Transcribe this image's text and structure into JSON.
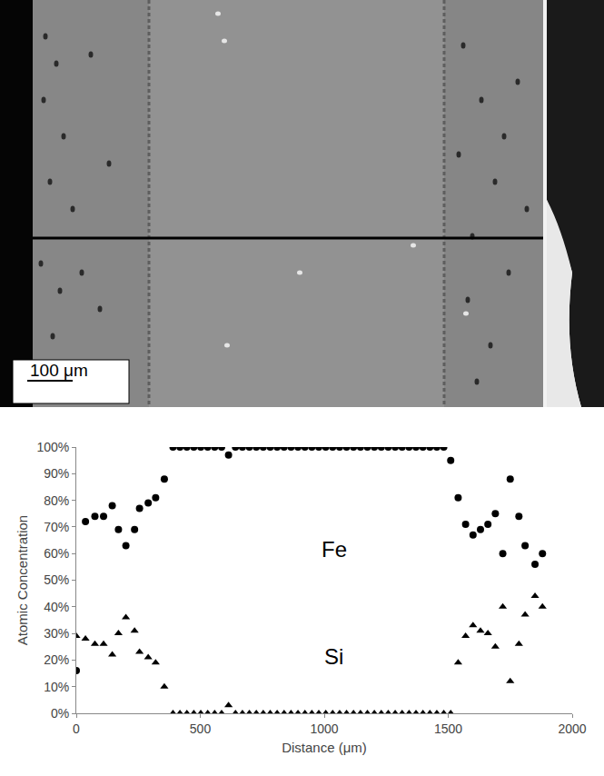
{
  "micrograph": {
    "scale_bar_label": "100 μm"
  },
  "chart_data": {
    "type": "scatter",
    "xlabel": "Distance (μm)",
    "ylabel": "Atomic Concentration",
    "x": [
      0,
      37,
      75,
      110,
      145,
      170,
      200,
      235,
      255,
      290,
      320,
      355,
      390,
      418,
      446,
      474,
      502,
      530,
      558,
      586,
      614,
      642,
      670,
      698,
      726,
      754,
      782,
      810,
      838,
      866,
      894,
      922,
      950,
      978,
      1006,
      1034,
      1062,
      1090,
      1118,
      1146,
      1174,
      1202,
      1230,
      1258,
      1286,
      1314,
      1342,
      1370,
      1398,
      1426,
      1454,
      1482,
      1510,
      1540,
      1570,
      1600,
      1630,
      1660,
      1690,
      1720,
      1750,
      1785,
      1810,
      1850,
      1880
    ],
    "series": [
      {
        "name": "Fe",
        "color": "#000000",
        "marker": "circle",
        "values": [
          16,
          72,
          74,
          74,
          78,
          69,
          63,
          69,
          77,
          79,
          81,
          88,
          100,
          100,
          100,
          100,
          100,
          100,
          100,
          100,
          97,
          100,
          100,
          100,
          100,
          100,
          100,
          100,
          100,
          100,
          100,
          100,
          100,
          100,
          100,
          100,
          100,
          100,
          100,
          100,
          100,
          100,
          100,
          100,
          100,
          100,
          100,
          100,
          100,
          100,
          100,
          100,
          95,
          81,
          71,
          67,
          69,
          71,
          75,
          60,
          88,
          74,
          63,
          56,
          60
        ]
      },
      {
        "name": "Si",
        "color": "#000000",
        "marker": "triangle-up",
        "values": [
          29,
          28,
          26,
          26,
          22,
          30,
          36,
          31,
          23,
          21,
          19,
          10,
          0,
          0,
          0,
          0,
          0,
          0,
          0,
          0,
          3,
          0,
          0,
          0,
          0,
          0,
          0,
          0,
          0,
          0,
          0,
          0,
          0,
          0,
          0,
          0,
          0,
          0,
          0,
          0,
          0,
          0,
          0,
          0,
          0,
          0,
          0,
          0,
          0,
          0,
          0,
          0,
          0,
          19,
          29,
          33,
          31,
          30,
          25,
          40,
          12,
          26,
          37,
          44,
          40
        ]
      }
    ],
    "xlim": [
      0,
      2000
    ],
    "xticks": [
      0,
      500,
      1000,
      1500,
      2000
    ],
    "ylim": [
      0,
      100
    ],
    "yticks": [
      {
        "value": 0,
        "label": "0%"
      },
      {
        "value": 10,
        "label": "10%"
      },
      {
        "value": 20,
        "label": "20%"
      },
      {
        "value": 30,
        "label": "30%"
      },
      {
        "value": 40,
        "label": "40%"
      },
      {
        "value": 50,
        "label": "50%"
      },
      {
        "value": 60,
        "label": "60%"
      },
      {
        "value": 70,
        "label": "70%"
      },
      {
        "value": 80,
        "label": "80%"
      },
      {
        "value": 90,
        "label": "90%"
      },
      {
        "value": 100,
        "label": "100%"
      }
    ],
    "grid": false
  }
}
